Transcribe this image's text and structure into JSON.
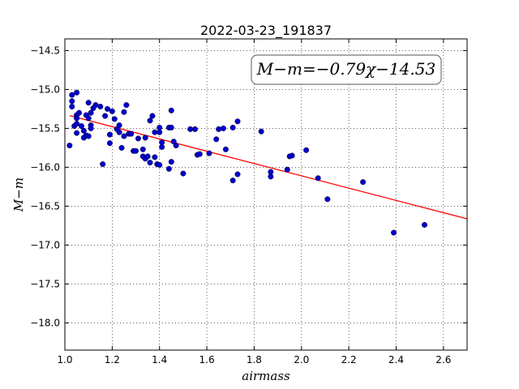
{
  "chart_data": {
    "type": "scatter",
    "title": "2022-03-23_191837",
    "xlabel": "airmass",
    "ylabel": "M−m",
    "xlim": [
      1.0,
      2.7
    ],
    "ylim": [
      -18.35,
      -14.35
    ],
    "x_ticks": [
      1.0,
      1.2,
      1.4,
      1.6,
      1.8,
      2.0,
      2.2,
      2.4,
      2.6
    ],
    "x_tick_labels": [
      "1.0",
      "1.2",
      "1.4",
      "1.6",
      "1.8",
      "2.0",
      "2.2",
      "2.4",
      "2.6"
    ],
    "y_ticks": [
      -14.5,
      -15.0,
      -15.5,
      -16.0,
      -16.5,
      -17.0,
      -17.5,
      -18.0
    ],
    "y_tick_labels": [
      "−14.5",
      "−15.0",
      "−15.5",
      "−16.0",
      "−16.5",
      "−17.0",
      "−17.5",
      "−18.0"
    ],
    "grid": true,
    "annotation": "M−m=−0.79χ−14.53",
    "fit": {
      "slope": -0.79,
      "intercept": -14.53,
      "x_range": [
        1.02,
        2.7
      ],
      "color": "#ff0000"
    },
    "points_color": "#0000cc",
    "points": [
      [
        1.02,
        -15.72
      ],
      [
        1.03,
        -15.07
      ],
      [
        1.03,
        -15.15
      ],
      [
        1.03,
        -15.22
      ],
      [
        1.04,
        -15.47
      ],
      [
        1.05,
        -15.04
      ],
      [
        1.05,
        -15.33
      ],
      [
        1.05,
        -15.37
      ],
      [
        1.05,
        -15.44
      ],
      [
        1.05,
        -15.56
      ],
      [
        1.06,
        -15.3
      ],
      [
        1.07,
        -15.47
      ],
      [
        1.08,
        -15.53
      ],
      [
        1.08,
        -15.62
      ],
      [
        1.09,
        -15.33
      ],
      [
        1.09,
        -15.59
      ],
      [
        1.1,
        -15.17
      ],
      [
        1.1,
        -15.37
      ],
      [
        1.1,
        -15.6
      ],
      [
        1.11,
        -15.3
      ],
      [
        1.11,
        -15.46
      ],
      [
        1.11,
        -15.5
      ],
      [
        1.12,
        -15.24
      ],
      [
        1.13,
        -15.2
      ],
      [
        1.15,
        -15.22
      ],
      [
        1.16,
        -15.96
      ],
      [
        1.17,
        -15.34
      ],
      [
        1.18,
        -15.25
      ],
      [
        1.19,
        -15.69
      ],
      [
        1.19,
        -15.58
      ],
      [
        1.2,
        -15.28
      ],
      [
        1.21,
        -15.38
      ],
      [
        1.22,
        -15.51
      ],
      [
        1.23,
        -15.46
      ],
      [
        1.23,
        -15.55
      ],
      [
        1.24,
        -15.75
      ],
      [
        1.25,
        -15.29
      ],
      [
        1.25,
        -15.6
      ],
      [
        1.26,
        -15.2
      ],
      [
        1.27,
        -15.57
      ],
      [
        1.28,
        -15.57
      ],
      [
        1.29,
        -15.79
      ],
      [
        1.3,
        -15.79
      ],
      [
        1.31,
        -15.63
      ],
      [
        1.33,
        -15.77
      ],
      [
        1.33,
        -15.86
      ],
      [
        1.34,
        -15.89
      ],
      [
        1.34,
        -15.62
      ],
      [
        1.35,
        -15.86
      ],
      [
        1.36,
        -15.4
      ],
      [
        1.36,
        -15.94
      ],
      [
        1.37,
        -15.34
      ],
      [
        1.38,
        -15.87
      ],
      [
        1.38,
        -15.55
      ],
      [
        1.39,
        -15.96
      ],
      [
        1.4,
        -15.55
      ],
      [
        1.4,
        -15.49
      ],
      [
        1.4,
        -15.97
      ],
      [
        1.41,
        -15.74
      ],
      [
        1.41,
        -15.68
      ],
      [
        1.44,
        -15.49
      ],
      [
        1.44,
        -16.02
      ],
      [
        1.45,
        -15.27
      ],
      [
        1.45,
        -15.49
      ],
      [
        1.45,
        -15.93
      ],
      [
        1.46,
        -15.67
      ],
      [
        1.47,
        -15.72
      ],
      [
        1.5,
        -16.08
      ],
      [
        1.53,
        -15.51
      ],
      [
        1.55,
        -15.51
      ],
      [
        1.56,
        -15.84
      ],
      [
        1.57,
        -15.83
      ],
      [
        1.61,
        -15.82
      ],
      [
        1.64,
        -15.64
      ],
      [
        1.65,
        -15.51
      ],
      [
        1.67,
        -15.5
      ],
      [
        1.68,
        -15.77
      ],
      [
        1.71,
        -15.49
      ],
      [
        1.71,
        -16.17
      ],
      [
        1.73,
        -16.09
      ],
      [
        1.73,
        -15.41
      ],
      [
        1.83,
        -15.54
      ],
      [
        1.87,
        -16.06
      ],
      [
        1.87,
        -16.12
      ],
      [
        1.94,
        -16.03
      ],
      [
        1.95,
        -15.86
      ],
      [
        1.96,
        -15.85
      ],
      [
        2.02,
        -15.78
      ],
      [
        2.07,
        -16.14
      ],
      [
        2.11,
        -16.41
      ],
      [
        2.26,
        -16.19
      ],
      [
        2.39,
        -16.84
      ],
      [
        2.52,
        -16.74
      ]
    ]
  }
}
